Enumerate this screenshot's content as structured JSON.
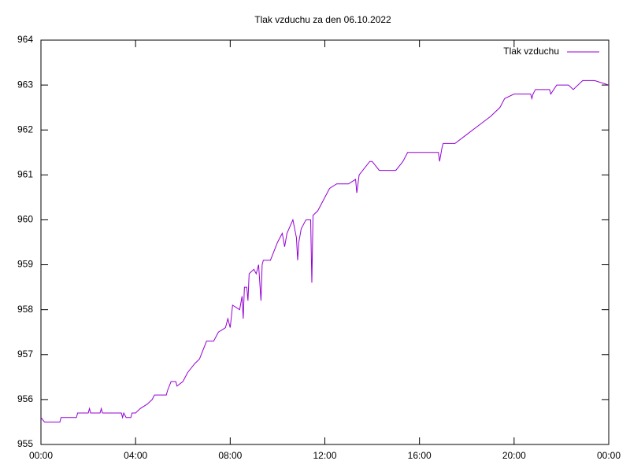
{
  "chart_data": {
    "type": "line",
    "title": "Tlak vzduchu za den 06.10.2022",
    "x": [
      0.0,
      0.15,
      0.8,
      0.85,
      1.5,
      1.55,
      2.0,
      2.05,
      2.1,
      2.5,
      2.55,
      2.6,
      3.4,
      3.45,
      3.5,
      3.6,
      3.8,
      3.85,
      4.0,
      4.2,
      4.5,
      4.7,
      4.8,
      5.3,
      5.35,
      5.5,
      5.7,
      5.75,
      6.0,
      6.2,
      6.5,
      6.7,
      7.0,
      7.3,
      7.5,
      7.8,
      7.9,
      8.0,
      8.1,
      8.4,
      8.5,
      8.55,
      8.6,
      8.7,
      8.75,
      8.8,
      9.0,
      9.1,
      9.2,
      9.3,
      9.35,
      9.4,
      9.7,
      10.0,
      10.2,
      10.3,
      10.4,
      10.65,
      10.8,
      10.85,
      10.9,
      11.0,
      11.2,
      11.4,
      11.45,
      11.5,
      11.7,
      11.9,
      12.2,
      12.5,
      13.0,
      13.3,
      13.35,
      13.45,
      13.9,
      14.0,
      14.3,
      15.0,
      15.3,
      15.5,
      16.8,
      16.85,
      16.95,
      17.0,
      17.5,
      18.0,
      18.5,
      19.0,
      19.4,
      19.6,
      20.0,
      20.7,
      20.75,
      20.8,
      20.9,
      21.5,
      21.55,
      21.8,
      22.3,
      22.5,
      22.9,
      23.2,
      23.4,
      24.0
    ],
    "series": [
      {
        "name": "Tlak vzduchu",
        "color": "#9400d3",
        "values": [
          955.6,
          955.5,
          955.5,
          955.6,
          955.6,
          955.7,
          955.7,
          955.8,
          955.7,
          955.7,
          955.8,
          955.7,
          955.7,
          955.6,
          955.7,
          955.6,
          955.6,
          955.7,
          955.7,
          955.8,
          955.9,
          956.0,
          956.1,
          956.1,
          956.2,
          956.4,
          956.4,
          956.3,
          956.4,
          956.6,
          956.8,
          956.9,
          957.3,
          957.3,
          957.5,
          957.6,
          957.8,
          957.6,
          958.1,
          958.0,
          958.3,
          957.8,
          958.5,
          958.5,
          958.2,
          958.8,
          958.9,
          958.8,
          959.0,
          958.2,
          959.0,
          959.1,
          959.1,
          959.5,
          959.7,
          959.4,
          959.7,
          960.0,
          959.6,
          959.1,
          959.5,
          959.8,
          960.0,
          960.0,
          958.6,
          960.1,
          960.2,
          960.4,
          960.7,
          960.8,
          960.8,
          960.9,
          960.6,
          961.0,
          961.3,
          961.3,
          961.1,
          961.1,
          961.3,
          961.5,
          961.5,
          961.3,
          961.6,
          961.7,
          961.7,
          961.9,
          962.1,
          962.3,
          962.5,
          962.7,
          962.8,
          962.8,
          962.7,
          962.8,
          962.9,
          962.9,
          962.8,
          963.0,
          963.0,
          962.9,
          963.1,
          963.1,
          963.1,
          963.0
        ]
      }
    ],
    "xlim": [
      0,
      24
    ],
    "xticks": [
      {
        "value": 0,
        "label": "00:00"
      },
      {
        "value": 4,
        "label": "04:00"
      },
      {
        "value": 8,
        "label": "08:00"
      },
      {
        "value": 12,
        "label": "12:00"
      },
      {
        "value": 16,
        "label": "16:00"
      },
      {
        "value": 20,
        "label": "20:00"
      },
      {
        "value": 24,
        "label": "00:00"
      }
    ],
    "ylim": [
      955,
      964
    ],
    "yticks": [
      955,
      956,
      957,
      958,
      959,
      960,
      961,
      962,
      963,
      964
    ],
    "grid": false,
    "legend": "top-right"
  }
}
